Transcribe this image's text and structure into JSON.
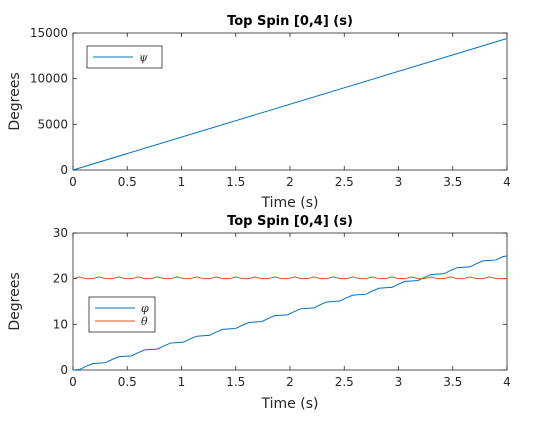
{
  "chart_data": [
    {
      "type": "line",
      "title": "Top Spin [0,4] (s)",
      "xlabel": "Time (s)",
      "ylabel": "Degrees",
      "xlim": [
        0,
        4
      ],
      "ylim": [
        0,
        15000
      ],
      "xticks": [
        0,
        0.5,
        1,
        1.5,
        2,
        2.5,
        3,
        3.5,
        4
      ],
      "xtick_labels": [
        "0",
        "0.5",
        "1",
        "1.5",
        "2",
        "2.5",
        "3",
        "3.5",
        "4"
      ],
      "yticks": [
        0,
        5000,
        10000,
        15000
      ],
      "ytick_labels": [
        "0",
        "5000",
        "10000",
        "15000"
      ],
      "grid": false,
      "legend": "top-left",
      "series": [
        {
          "name": "ψ",
          "color": "#0072bd",
          "x": [
            0,
            4
          ],
          "y": [
            0,
            14400
          ]
        }
      ]
    },
    {
      "type": "line",
      "title": "Top Spin [0,4] (s)",
      "xlabel": "Time (s)",
      "ylabel": "Degrees",
      "xlim": [
        0,
        4
      ],
      "ylim": [
        0,
        30
      ],
      "xticks": [
        0,
        0.5,
        1,
        1.5,
        2,
        2.5,
        3,
        3.5,
        4
      ],
      "xtick_labels": [
        "0",
        "0.5",
        "1",
        "1.5",
        "2",
        "2.5",
        "3",
        "3.5",
        "4"
      ],
      "yticks": [
        0,
        10,
        20,
        30
      ],
      "ytick_labels": [
        "0",
        "10",
        "20",
        "30"
      ],
      "grid": false,
      "legend": "middle-left",
      "series": [
        {
          "name": "φ",
          "color": "#0072bd",
          "x": [
            0,
            0.06,
            0.12,
            0.18,
            0.24,
            0.3,
            0.36,
            0.42,
            0.48,
            0.54,
            0.6,
            0.66,
            0.72,
            0.78,
            0.84,
            0.9,
            0.96,
            1.02,
            1.08,
            1.14,
            1.2,
            1.26,
            1.32,
            1.38,
            1.44,
            1.5,
            1.56,
            1.62,
            1.68,
            1.74,
            1.8,
            1.86,
            1.92,
            1.98,
            2.04,
            2.1,
            2.16,
            2.22,
            2.28,
            2.34,
            2.4,
            2.46,
            2.52,
            2.58,
            2.64,
            2.7,
            2.76,
            2.82,
            2.88,
            2.94,
            3.0,
            3.06,
            3.12,
            3.18,
            3.24,
            3.3,
            3.36,
            3.42,
            3.48,
            3.54,
            3.6,
            3.66,
            3.72,
            3.78,
            3.84,
            3.9,
            3.96,
            4.0
          ],
          "y": [
            0,
            0.1,
            0.8,
            1.4,
            1.5,
            1.6,
            2.3,
            2.9,
            3.0,
            3.1,
            3.8,
            4.4,
            4.5,
            4.6,
            5.3,
            5.9,
            6.0,
            6.1,
            6.8,
            7.4,
            7.5,
            7.6,
            8.3,
            8.9,
            9.0,
            9.1,
            9.8,
            10.4,
            10.5,
            10.6,
            11.3,
            11.9,
            12.0,
            12.1,
            12.8,
            13.4,
            13.5,
            13.6,
            14.3,
            14.9,
            15.0,
            15.1,
            15.8,
            16.4,
            16.5,
            16.6,
            17.3,
            17.9,
            18.0,
            18.1,
            18.8,
            19.4,
            19.5,
            19.6,
            20.3,
            20.9,
            21.0,
            21.1,
            21.8,
            22.4,
            22.5,
            22.6,
            23.3,
            23.9,
            24.0,
            24.1,
            24.8,
            25.0
          ]
        },
        {
          "name": "θ",
          "color": "#d95319",
          "x": [
            0,
            0.06,
            0.12,
            0.18,
            0.24,
            0.3,
            0.36,
            0.42,
            0.48,
            0.54,
            0.6,
            0.66,
            0.72,
            0.78,
            0.84,
            0.9,
            0.96,
            1.02,
            1.08,
            1.14,
            1.2,
            1.26,
            1.32,
            1.38,
            1.44,
            1.5,
            1.56,
            1.62,
            1.68,
            1.74,
            1.8,
            1.86,
            1.92,
            1.98,
            2.04,
            2.1,
            2.16,
            2.22,
            2.28,
            2.34,
            2.4,
            2.46,
            2.52,
            2.58,
            2.64,
            2.7,
            2.76,
            2.82,
            2.88,
            2.94,
            3.0,
            3.06,
            3.12,
            3.18,
            3.24,
            3.3,
            3.36,
            3.42,
            3.48,
            3.54,
            3.6,
            3.66,
            3.72,
            3.78,
            3.84,
            3.9,
            3.96,
            4.0
          ],
          "y": [
            20,
            20.4,
            20.0,
            20.0,
            20.4,
            20.0,
            20.0,
            20.4,
            20.0,
            20.0,
            20.4,
            20.0,
            20.0,
            20.4,
            20.0,
            20.0,
            20.4,
            20.0,
            20.0,
            20.4,
            20.0,
            20.0,
            20.4,
            20.0,
            20.0,
            20.4,
            20.0,
            20.0,
            20.4,
            20.0,
            20.0,
            20.4,
            20.0,
            20.0,
            20.4,
            20.0,
            20.0,
            20.4,
            20.0,
            20.0,
            20.4,
            20.0,
            20.0,
            20.4,
            20.0,
            20.0,
            20.4,
            20.0,
            20.0,
            20.4,
            20.0,
            20.0,
            20.4,
            20.0,
            20.0,
            20.4,
            20.0,
            20.0,
            20.4,
            20.0,
            20.0,
            20.4,
            20.0,
            20.0,
            20.4,
            20.0,
            20.0,
            20.0
          ]
        }
      ]
    }
  ]
}
